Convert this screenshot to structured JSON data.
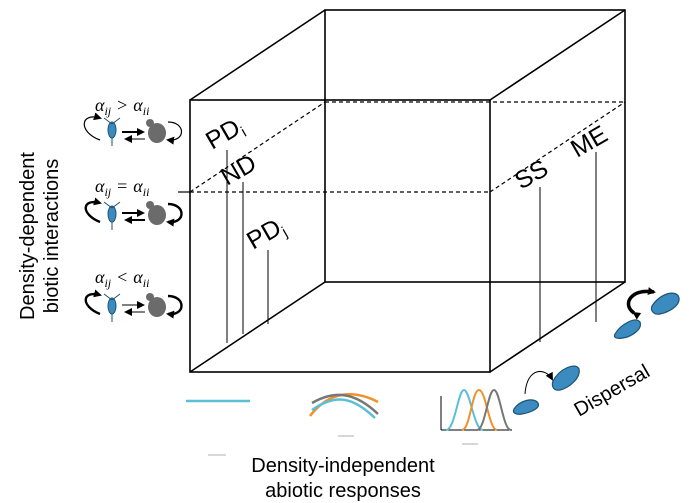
{
  "axes": {
    "y_line1": "Density-dependent",
    "y_line2": "biotic interactions",
    "x_line1": "Density-independent",
    "x_line2": "abiotic responses",
    "z": "Dispersal"
  },
  "interaction_rows": [
    {
      "alpha": "α",
      "lhs_sub": "ij",
      "rel": ">",
      "rhs_sub": "ii"
    },
    {
      "alpha": "α",
      "lhs_sub": "ij",
      "rel": "=",
      "rhs_sub": "ii"
    },
    {
      "alpha": "α",
      "lhs_sub": "ij",
      "rel": "<",
      "rhs_sub": "ii"
    }
  ],
  "mechanisms": {
    "pd_top": "PD",
    "pd_top_sub": "i",
    "nd": "ND",
    "pd_low": "PD",
    "pd_low_sub": "j",
    "ss": "SS",
    "me": "ME"
  },
  "colors": {
    "species_blue": "#3c8bc0",
    "species_grey": "#6b6b6b",
    "curve_cyan": "#5bc0d6",
    "curve_orange": "#f0912a",
    "curve_grey": "#777777"
  },
  "icons": [
    "copepod-icon",
    "beetle-icon",
    "response-curve-icon",
    "footprint-icon",
    "dispersal-arrow-icon"
  ]
}
